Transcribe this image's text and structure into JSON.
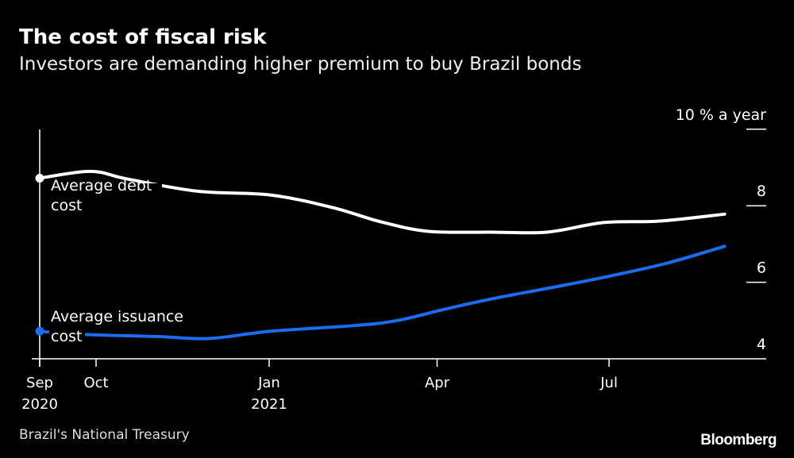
{
  "header": {
    "title": "The cost of fiscal risk",
    "subtitle": "Investors are demanding higher premium to buy Brazil bonds"
  },
  "footer": {
    "source": "Brazil's National Treasury",
    "brand": "Bloomberg"
  },
  "chart_data": {
    "type": "line",
    "title": "The cost of fiscal risk",
    "subtitle": "Investors are demanding higher premium to buy Brazil bonds",
    "ylabel": "% a year",
    "ylim": [
      4,
      10
    ],
    "yticks": [
      {
        "v": 10,
        "label": "10 % a year"
      },
      {
        "v": 8,
        "label": "8"
      },
      {
        "v": 6,
        "label": "6"
      },
      {
        "v": 4,
        "label": "4"
      }
    ],
    "x_unit": "months since Sep 2020",
    "xticks": [
      {
        "m": 0,
        "label": "Sep",
        "sub": "2020"
      },
      {
        "m": 1,
        "label": "Oct",
        "sub": ""
      },
      {
        "m": 4.07,
        "label": "Jan",
        "sub": "2021"
      },
      {
        "m": 7.05,
        "label": "Apr",
        "sub": ""
      },
      {
        "m": 10.1,
        "label": "Jul",
        "sub": ""
      }
    ],
    "series": [
      {
        "name": "Average debt cost",
        "label_lines": [
          "Average debt",
          "cost"
        ],
        "color": "#ffffff",
        "x": [
          0,
          0.9,
          1.55,
          2.8,
          4.1,
          5.2,
          6.05,
          6.9,
          8.0,
          9.0,
          10.0,
          11.0,
          12.15
        ],
        "y": [
          8.72,
          8.9,
          8.7,
          8.38,
          8.28,
          7.95,
          7.58,
          7.33,
          7.31,
          7.31,
          7.56,
          7.6,
          7.78
        ]
      },
      {
        "name": "Average issuance cost",
        "label_lines": [
          "Average issuance",
          "cost"
        ],
        "color": "#1a6cf0",
        "x": [
          0,
          0.7,
          2.1,
          3.0,
          4.1,
          5.6,
          6.34,
          7.2,
          8.03,
          9.15,
          10.14,
          11.13,
          12.15
        ],
        "y": [
          4.72,
          4.64,
          4.58,
          4.53,
          4.72,
          4.87,
          5.0,
          5.3,
          5.57,
          5.88,
          6.17,
          6.5,
          6.94
        ]
      }
    ],
    "grid": false
  }
}
